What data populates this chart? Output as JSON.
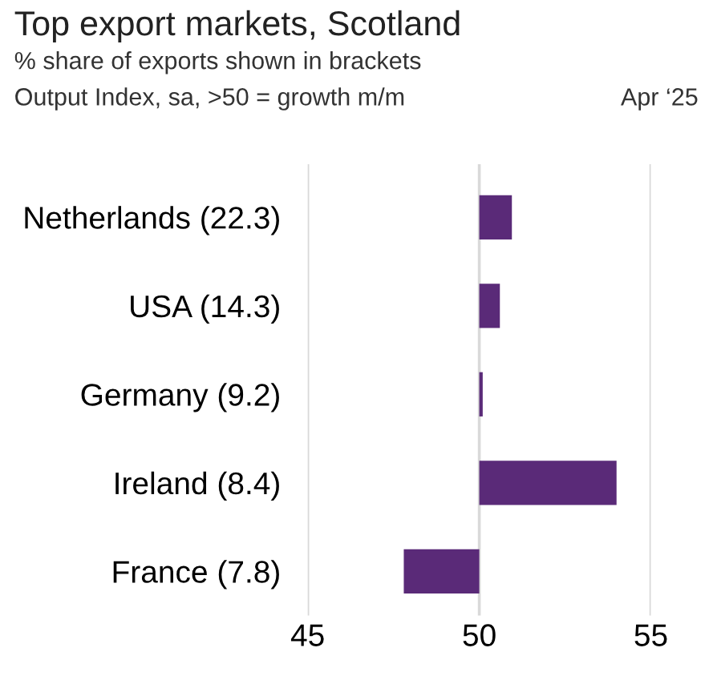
{
  "chart_data": {
    "type": "bar",
    "orientation": "horizontal",
    "title": "Top export markets, Scotland",
    "subtitle": "% share of exports shown in brackets",
    "xlabel": null,
    "annotations": [
      "Output Index, sa, >50 = growth m/m",
      "Apr ‘25"
    ],
    "categories": [
      "Netherlands (22.3)",
      "USA (14.3)",
      "Germany (9.2)",
      "Ireland (8.4)",
      "France (7.8)"
    ],
    "base": [
      50,
      50,
      50,
      50,
      50
    ],
    "values": [
      0.95,
      0.6,
      0.1,
      4.0,
      -2.2
    ],
    "color": "#5a2a78",
    "xlim": [
      45,
      55
    ],
    "xticks": [
      45,
      50,
      55
    ],
    "grid": "x"
  }
}
